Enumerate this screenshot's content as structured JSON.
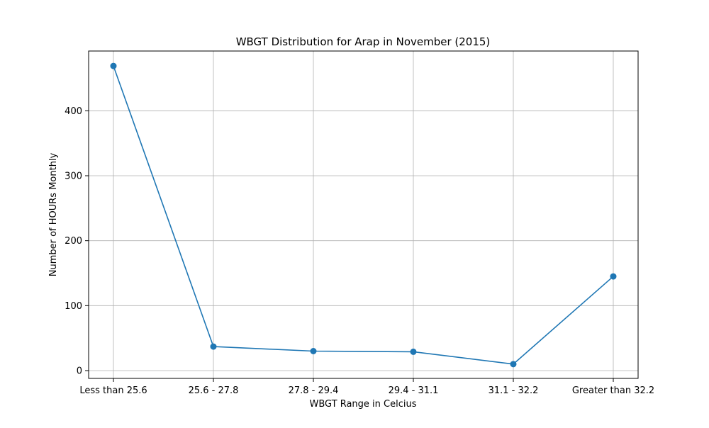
{
  "chart_data": {
    "type": "line",
    "title": "WBGT Distribution for Arap in November (2015)",
    "xlabel": "WBGT Range in Celcius",
    "ylabel": "Number of HOURs Monthly",
    "categories": [
      "Less than 25.6",
      "25.6 - 27.8",
      "27.8 - 29.4",
      "29.4 - 31.1",
      "31.1 - 32.2",
      "Greater than 32.2"
    ],
    "series": [
      {
        "values": [
          469,
          37,
          30,
          29,
          10,
          145
        ],
        "color": "#1f77b4",
        "marker": "circle"
      }
    ],
    "ylim": [
      -12,
      492
    ],
    "yticks": [
      0,
      100,
      200,
      300,
      400
    ],
    "grid": true,
    "legend": "none"
  }
}
